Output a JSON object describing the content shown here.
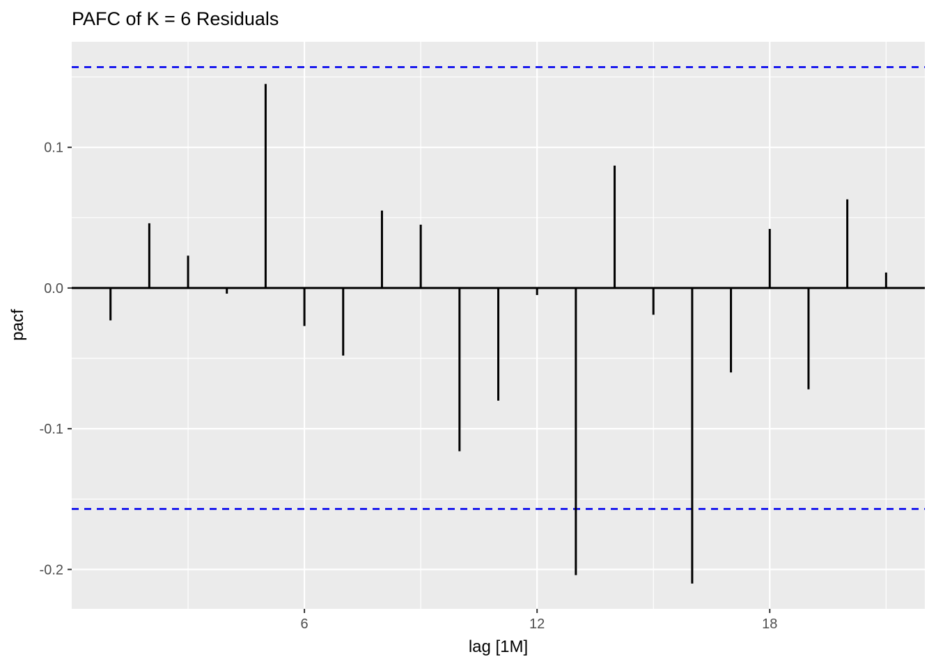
{
  "chart_data": {
    "type": "bar",
    "title": "PAFC of K = 6 Residuals",
    "xlabel": "lag [1M]",
    "ylabel": "pacf",
    "x": [
      1,
      2,
      3,
      4,
      5,
      6,
      7,
      8,
      9,
      10,
      11,
      12,
      13,
      14,
      15,
      16,
      17,
      18,
      19,
      20,
      21
    ],
    "values": [
      -0.023,
      0.046,
      0.023,
      -0.004,
      0.145,
      -0.027,
      -0.048,
      0.055,
      0.045,
      -0.116,
      -0.08,
      -0.005,
      -0.204,
      0.087,
      -0.019,
      -0.21,
      -0.06,
      0.042,
      -0.072,
      0.063,
      0.011
    ],
    "confidence_bounds": {
      "upper": 0.157,
      "lower": -0.157,
      "color": "#0000EE",
      "style": "dashed"
    },
    "xlim": [
      0,
      22
    ],
    "ylim": [
      -0.228,
      0.175
    ],
    "x_tick_values": [
      6,
      12,
      18
    ],
    "x_tick_labels": [
      "6",
      "12",
      "18"
    ],
    "x_minor_ticks": [
      3,
      9,
      15,
      21
    ],
    "y_tick_values": [
      0.1,
      0.0,
      -0.1,
      -0.2
    ],
    "y_tick_labels": [
      "0.1",
      "0.0",
      "-0.1",
      "-0.2"
    ],
    "y_minor_ticks": [
      0.15,
      0.05,
      -0.05,
      -0.15
    ],
    "grid": true,
    "legend": "none",
    "colors": {
      "panel_background": "#EBEBEB",
      "grid_line": "#FFFFFF",
      "bar": "#000000",
      "zero_line": "#000000",
      "tick_label": "#4D4D4D",
      "tick_mark": "#333333"
    }
  }
}
